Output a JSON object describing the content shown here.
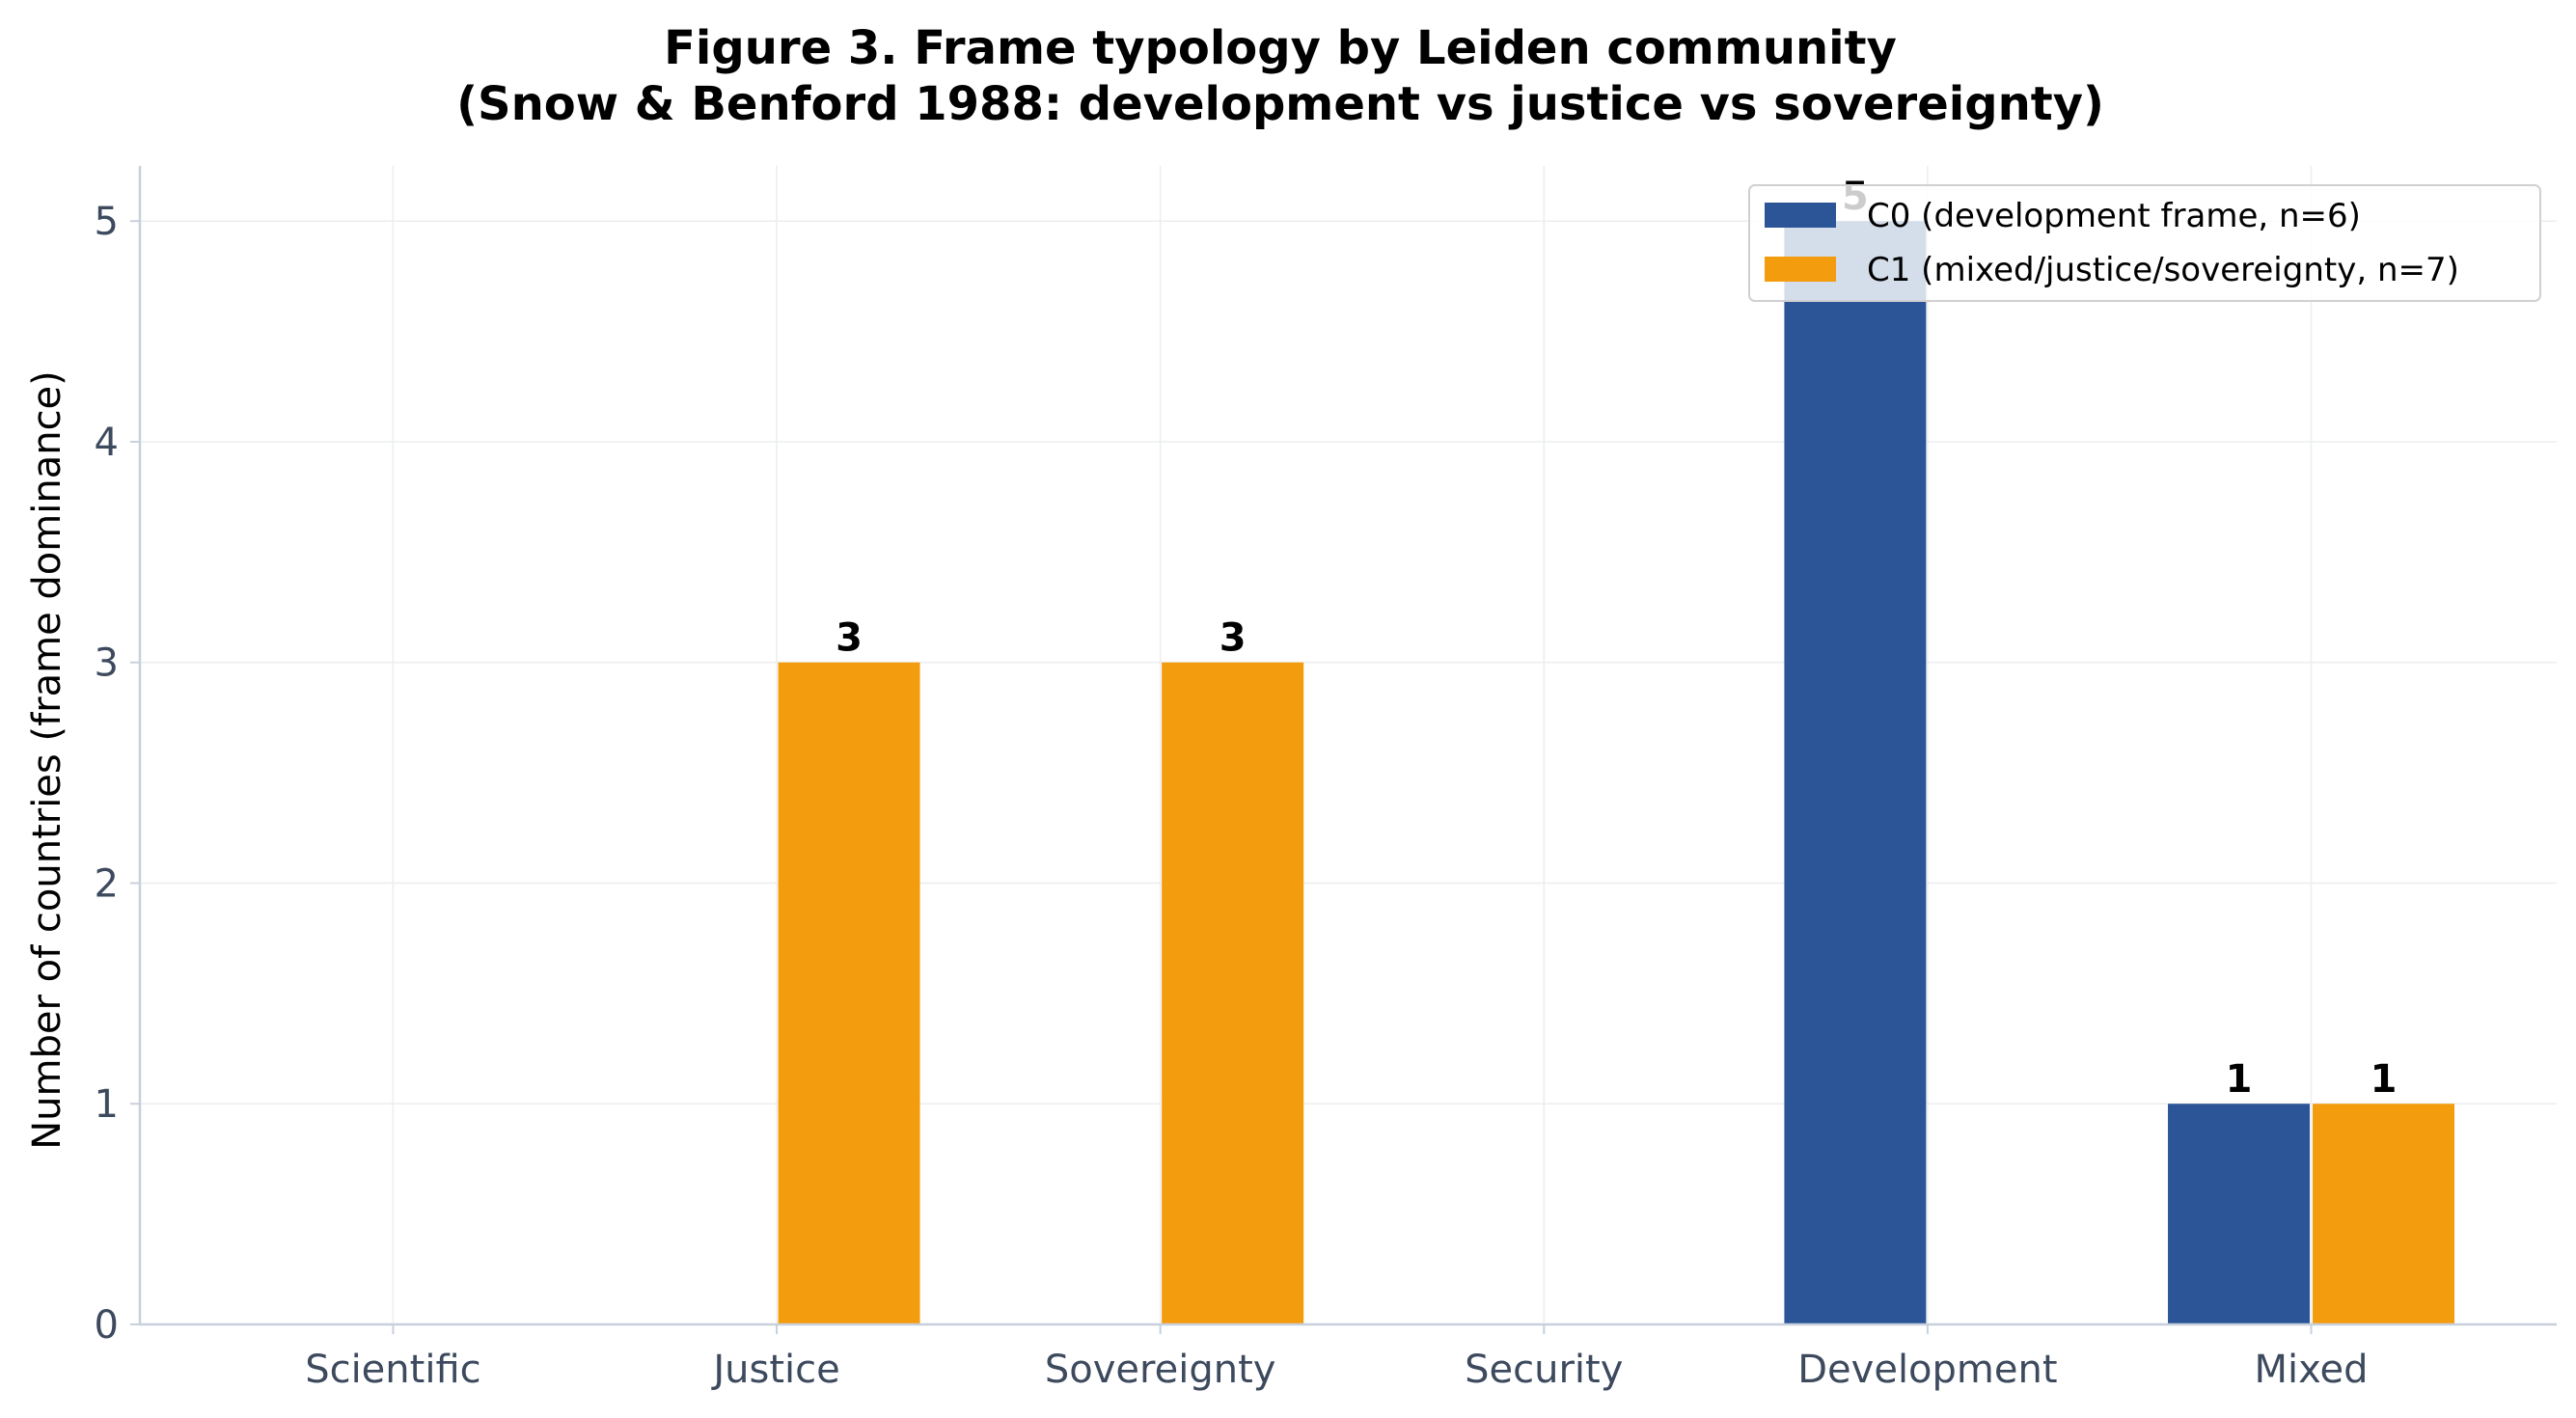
{
  "chart_data": {
    "type": "bar",
    "title": "Figure 3. Frame typology by Leiden community",
    "subtitle": "(Snow & Benford 1988: development vs justice vs sovereignty)",
    "xlabel": "",
    "ylabel": "Number of countries (frame dominance)",
    "categories": [
      "Scientific",
      "Justice",
      "Sovereignty",
      "Security",
      "Development",
      "Mixed"
    ],
    "series": [
      {
        "name": "C0 (development frame, n=6)",
        "color": "#2b5597",
        "values": [
          0,
          0,
          0,
          0,
          5,
          1
        ],
        "labels": [
          "",
          "",
          "",
          "",
          "5",
          "1"
        ]
      },
      {
        "name": "C1 (mixed/justice/sovereignty, n=7)",
        "color": "#f39c0e",
        "values": [
          0,
          3,
          3,
          0,
          0,
          1
        ],
        "labels": [
          "",
          "3",
          "3",
          "",
          "",
          "1"
        ]
      }
    ],
    "ylim": [
      0,
      5.25
    ],
    "yticks": [
      "0",
      "1",
      "2",
      "3",
      "4",
      "5"
    ],
    "grid": true,
    "legend_position": "top-right",
    "colors": {
      "axis": "#c8d0dc",
      "grid": "#ebedf0",
      "tick_text": "#3d4a5e"
    }
  }
}
